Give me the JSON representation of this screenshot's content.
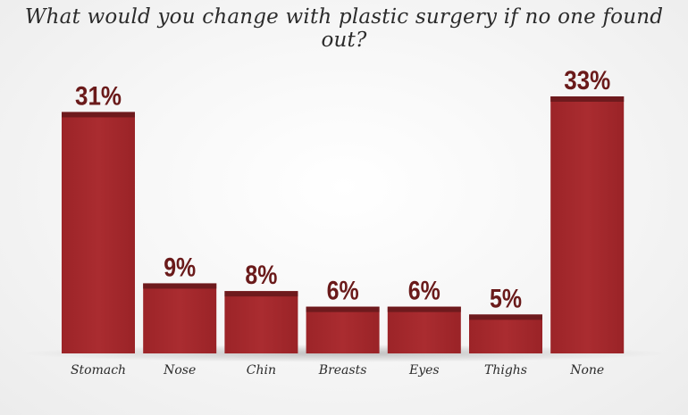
{
  "chart_data": {
    "type": "bar",
    "title": "What would you change with plastic surgery if no one found out?",
    "categories": [
      "Stomach",
      "Nose",
      "Chin",
      "Breasts",
      "Eyes",
      "Thighs",
      "None"
    ],
    "values": [
      31,
      9,
      8,
      6,
      6,
      5,
      33
    ],
    "value_labels": [
      "31%",
      "9%",
      "8%",
      "6%",
      "6%",
      "5%",
      "33%"
    ],
    "unit": "%",
    "ylim": [
      0,
      33
    ],
    "grid": false,
    "colors": {
      "bar": "#a3282c",
      "bar_top": "#6e1a1d",
      "label": "#6a1a1a"
    }
  }
}
